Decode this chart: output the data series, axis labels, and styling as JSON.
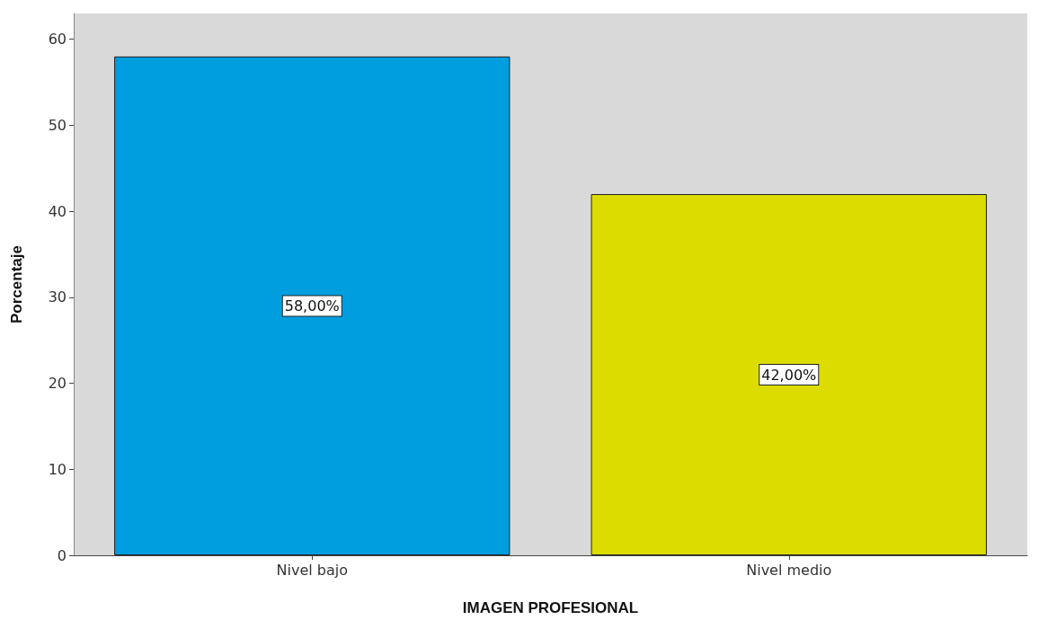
{
  "chart_data": {
    "type": "bar",
    "xlabel": "IMAGEN PROFESIONAL",
    "ylabel": "Porcentaje",
    "categories": [
      "Nivel bajo",
      "Nivel medio"
    ],
    "values": [
      58,
      42
    ],
    "colors": [
      "#009ede",
      "#dcdc00"
    ],
    "value_labels": [
      "58,00%",
      "42,00%"
    ],
    "ylim": [
      0,
      63
    ],
    "yticks": [
      0,
      10,
      20,
      30,
      40,
      50,
      60
    ],
    "grid": false
  }
}
